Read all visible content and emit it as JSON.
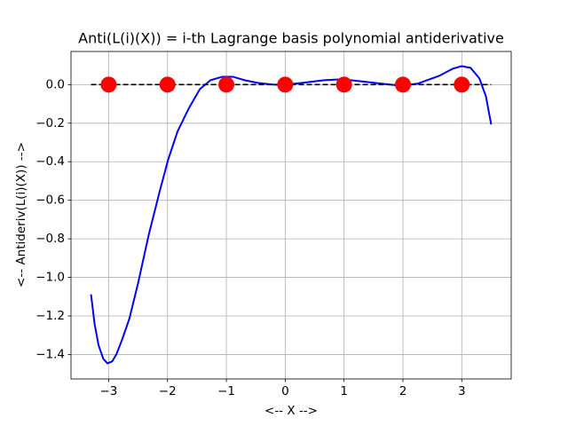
{
  "chart_data": {
    "type": "line",
    "title": "Anti(L(i)(X)) = i-th Lagrange basis polynomial antiderivative",
    "x_label": "<-- X -->",
    "y_label": "<-- Antideriv(L(i)(X)) -->",
    "xlim": [
      -3.64,
      3.84
    ],
    "ylim": [
      -1.527,
      0.172
    ],
    "xticks": [
      {
        "value": -3,
        "label": "−3"
      },
      {
        "value": -2,
        "label": "−2"
      },
      {
        "value": -1,
        "label": "−1"
      },
      0,
      1,
      2,
      3
    ],
    "yticks": [
      {
        "value": 0,
        "label": "0.0"
      },
      {
        "value": -0.2,
        "label": "−0.2"
      },
      {
        "value": -0.4,
        "label": "−0.4"
      },
      {
        "value": -0.6,
        "label": "−0.6"
      },
      {
        "value": -0.8,
        "label": "−0.8"
      },
      {
        "value": -1.0,
        "label": "−1.0"
      },
      {
        "value": -1.2,
        "label": "−1.2"
      },
      {
        "value": -1.4,
        "label": "−1.4"
      }
    ],
    "grid": true,
    "series": [
      {
        "color": "#0000ff",
        "linestyle": "solid",
        "marker": false,
        "x": [
          -3.3,
          -3.24,
          -3.17,
          -3.09,
          -3.02,
          -2.94,
          -2.87,
          -2.78,
          -2.65,
          -2.5,
          -2.32,
          -2.13,
          -1.99,
          -1.83,
          -1.64,
          -1.45,
          -1.27,
          -1.07,
          -0.89,
          -0.69,
          -0.47,
          -0.2,
          0,
          0.29,
          0.66,
          0.96,
          1.27,
          1.64,
          1.95,
          2.25,
          2.62,
          2.85,
          3.0,
          3.15,
          3.3,
          3.41,
          3.5
        ],
        "values": [
          -1.088,
          -1.24,
          -1.354,
          -1.423,
          -1.446,
          -1.436,
          -1.4,
          -1.33,
          -1.216,
          -1.03,
          -0.78,
          -0.55,
          -0.39,
          -0.243,
          -0.124,
          -0.023,
          0.023,
          0.041,
          0.041,
          0.023,
          0.009,
          0.0,
          0,
          0.009,
          0.023,
          0.028,
          0.018,
          0.005,
          -0.005,
          0.005,
          0.046,
          0.083,
          0.096,
          0.087,
          0.032,
          -0.06,
          -0.207
        ]
      },
      {
        "color": "#000000",
        "linestyle": "dashed",
        "marker": false,
        "x": [
          -3.3,
          3.5
        ],
        "values": [
          0,
          0
        ]
      },
      {
        "color": "#ff0000",
        "linestyle": "none",
        "marker": true,
        "x": [
          -3,
          -2,
          -1,
          0,
          1,
          2,
          3
        ],
        "values": [
          0,
          0,
          0,
          0,
          0,
          0,
          0
        ]
      }
    ]
  }
}
